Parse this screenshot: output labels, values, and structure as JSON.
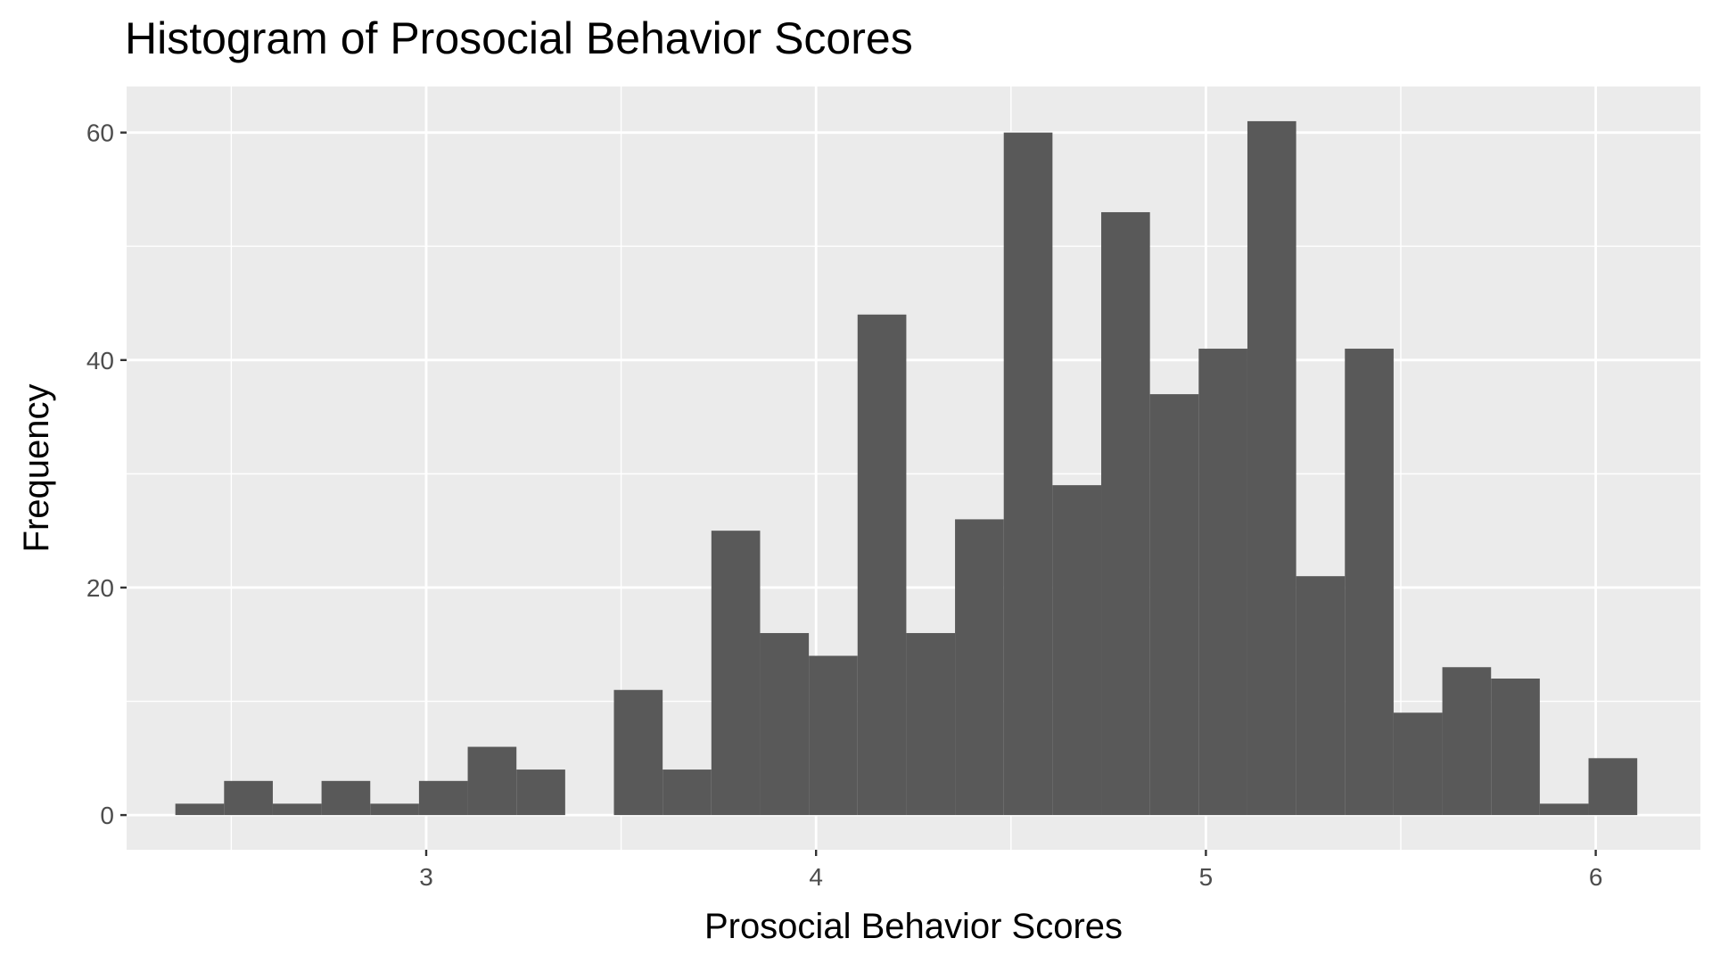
{
  "chart_data": {
    "type": "bar",
    "title": "Histogram of Prosocial Behavior Scores",
    "xlabel": "Prosocial Behavior Scores",
    "ylabel": "Frequency",
    "xlim": [
      2.2315,
      6.2685
    ],
    "ylim": [
      -3.05,
      64.05
    ],
    "x_ticks": [
      3,
      4,
      5,
      6
    ],
    "x_tick_labels": [
      "3",
      "4",
      "5",
      "6"
    ],
    "y_ticks": [
      0,
      20,
      40,
      60
    ],
    "y_tick_labels": [
      "0",
      "20",
      "40",
      "60"
    ],
    "x_minor_gridlines": [
      2.5,
      3.5,
      4.5,
      5.5
    ],
    "y_minor_gridlines": [
      10,
      30,
      50
    ],
    "grid": true,
    "panel_background": "#ebebeb",
    "bar_color": "#595959",
    "gridline_color": "#ffffff",
    "bins": [
      {
        "x0": 2.3565,
        "x1": 2.4815,
        "count": 1
      },
      {
        "x0": 2.4815,
        "x1": 2.6065,
        "count": 3
      },
      {
        "x0": 2.6065,
        "x1": 2.7315,
        "count": 1
      },
      {
        "x0": 2.7315,
        "x1": 2.8565,
        "count": 3
      },
      {
        "x0": 2.8565,
        "x1": 2.9815,
        "count": 1
      },
      {
        "x0": 2.9815,
        "x1": 3.1065,
        "count": 3
      },
      {
        "x0": 3.1065,
        "x1": 3.2315,
        "count": 6
      },
      {
        "x0": 3.2315,
        "x1": 3.3565,
        "count": 4
      },
      {
        "x0": 3.3565,
        "x1": 3.4815,
        "count": 0
      },
      {
        "x0": 3.4815,
        "x1": 3.6065,
        "count": 11
      },
      {
        "x0": 3.6065,
        "x1": 3.7315,
        "count": 4
      },
      {
        "x0": 3.7315,
        "x1": 3.8565,
        "count": 25
      },
      {
        "x0": 3.8565,
        "x1": 3.9815,
        "count": 16
      },
      {
        "x0": 3.9815,
        "x1": 4.1065,
        "count": 14
      },
      {
        "x0": 4.1065,
        "x1": 4.2315,
        "count": 44
      },
      {
        "x0": 4.2315,
        "x1": 4.3565,
        "count": 16
      },
      {
        "x0": 4.3565,
        "x1": 4.4815,
        "count": 26
      },
      {
        "x0": 4.4815,
        "x1": 4.6065,
        "count": 60
      },
      {
        "x0": 4.6065,
        "x1": 4.7315,
        "count": 29
      },
      {
        "x0": 4.7315,
        "x1": 4.8565,
        "count": 53
      },
      {
        "x0": 4.8565,
        "x1": 4.9815,
        "count": 37
      },
      {
        "x0": 4.9815,
        "x1": 5.1065,
        "count": 41
      },
      {
        "x0": 5.1065,
        "x1": 5.2315,
        "count": 61
      },
      {
        "x0": 5.2315,
        "x1": 5.3565,
        "count": 21
      },
      {
        "x0": 5.3565,
        "x1": 5.4815,
        "count": 41
      },
      {
        "x0": 5.4815,
        "x1": 5.6065,
        "count": 9
      },
      {
        "x0": 5.6065,
        "x1": 5.7315,
        "count": 13
      },
      {
        "x0": 5.7315,
        "x1": 5.8565,
        "count": 12
      },
      {
        "x0": 5.8565,
        "x1": 5.9815,
        "count": 1
      },
      {
        "x0": 5.9815,
        "x1": 6.1065,
        "count": 5
      }
    ]
  }
}
